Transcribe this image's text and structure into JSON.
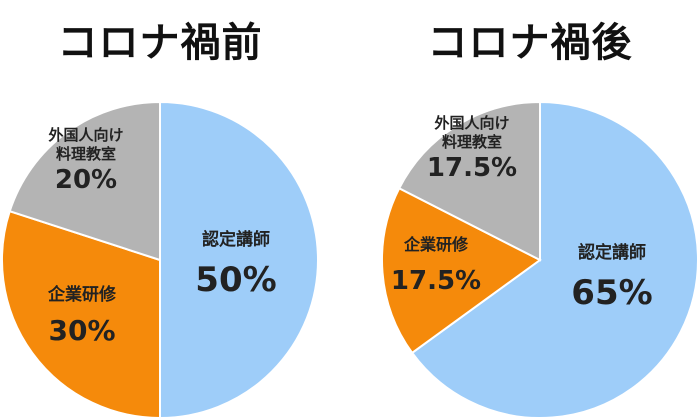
{
  "chart_data": [
    {
      "type": "pie",
      "title": "コロナ禍前",
      "categories": [
        "認定講師",
        "企業研修",
        "外国人向け\n料理教室"
      ],
      "values": [
        50,
        30,
        20
      ],
      "value_labels": [
        "50%",
        "30%",
        "20%"
      ],
      "colors": [
        "#9ecdf9",
        "#f58a0b",
        "#b4b4b4"
      ],
      "start_angle_deg": 0,
      "direction": "clockwise"
    },
    {
      "type": "pie",
      "title": "コロナ禍後",
      "categories": [
        "認定講師",
        "企業研修",
        "外国人向け\n料理教室"
      ],
      "values": [
        65,
        17.5,
        17.5
      ],
      "value_labels": [
        "65%",
        "17.5%",
        "17.5%"
      ],
      "colors": [
        "#9ecdf9",
        "#f58a0b",
        "#b4b4b4"
      ],
      "start_angle_deg": 0,
      "direction": "clockwise"
    }
  ]
}
